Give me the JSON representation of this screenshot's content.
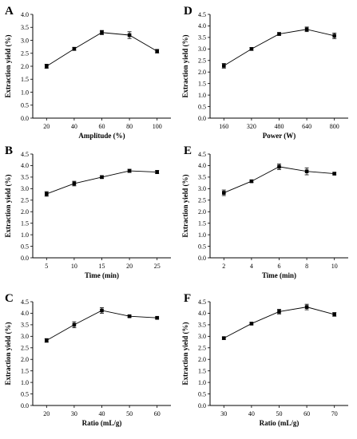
{
  "chart_data": [
    {
      "panel": "A",
      "type": "line",
      "x": [
        20,
        40,
        60,
        80,
        100
      ],
      "y": [
        2.0,
        2.67,
        3.3,
        3.2,
        2.58
      ],
      "err": [
        0.08,
        0.06,
        0.08,
        0.13,
        0.07
      ],
      "xlabel": "Amplitude (%)",
      "ylabel": "Extraction yield (%)",
      "xlim": [
        10,
        110
      ],
      "ylim": [
        0,
        4.0
      ],
      "xticks": [
        20,
        40,
        60,
        80,
        100
      ],
      "yticks": [
        0.0,
        0.5,
        1.0,
        1.5,
        2.0,
        2.5,
        3.0,
        3.5,
        4.0
      ],
      "grid": false
    },
    {
      "panel": "D",
      "type": "line",
      "x": [
        160,
        320,
        480,
        640,
        800
      ],
      "y": [
        2.27,
        3.0,
        3.65,
        3.85,
        3.57
      ],
      "err": [
        0.1,
        0.06,
        0.06,
        0.1,
        0.12
      ],
      "xlabel": "Power (W)",
      "ylabel": "Extraction yield (%)",
      "xlim": [
        80,
        880
      ],
      "ylim": [
        0,
        4.5
      ],
      "xticks": [
        160,
        320,
        480,
        640,
        800
      ],
      "yticks": [
        0.0,
        0.5,
        1.0,
        1.5,
        2.0,
        2.5,
        3.0,
        3.5,
        4.0,
        4.5
      ],
      "grid": false
    },
    {
      "panel": "B",
      "type": "line",
      "x": [
        5,
        10,
        15,
        20,
        25
      ],
      "y": [
        2.77,
        3.22,
        3.5,
        3.77,
        3.72
      ],
      "err": [
        0.1,
        0.1,
        0.06,
        0.07,
        0.07
      ],
      "xlabel": "Time (min)",
      "ylabel": "Extraction yield (%)",
      "xlim": [
        2.5,
        27.5
      ],
      "ylim": [
        0,
        4.5
      ],
      "xticks": [
        5,
        10,
        15,
        20,
        25
      ],
      "yticks": [
        0.0,
        0.5,
        1.0,
        1.5,
        2.0,
        2.5,
        3.0,
        3.5,
        4.0,
        4.5
      ],
      "grid": false
    },
    {
      "panel": "E",
      "type": "line",
      "x": [
        2,
        4,
        6,
        8,
        10
      ],
      "y": [
        2.82,
        3.32,
        3.95,
        3.75,
        3.65
      ],
      "err": [
        0.12,
        0.05,
        0.12,
        0.15,
        0.05
      ],
      "xlabel": "Time (min)",
      "ylabel": "Extraction yield (%)",
      "xlim": [
        1,
        11
      ],
      "ylim": [
        0,
        4.5
      ],
      "xticks": [
        2,
        4,
        6,
        8,
        10
      ],
      "yticks": [
        0.0,
        0.5,
        1.0,
        1.5,
        2.0,
        2.5,
        3.0,
        3.5,
        4.0,
        4.5
      ],
      "grid": false
    },
    {
      "panel": "C",
      "type": "line",
      "x": [
        20,
        30,
        40,
        50,
        60
      ],
      "y": [
        2.82,
        3.5,
        4.12,
        3.87,
        3.8
      ],
      "err": [
        0.08,
        0.13,
        0.12,
        0.04,
        0.04
      ],
      "xlabel": "Ratio (mL/g)",
      "ylabel": "Extraction yield (%)",
      "xlim": [
        15,
        65
      ],
      "ylim": [
        0,
        4.5
      ],
      "xticks": [
        20,
        30,
        40,
        50,
        60
      ],
      "yticks": [
        0.0,
        0.5,
        1.0,
        1.5,
        2.0,
        2.5,
        3.0,
        3.5,
        4.0,
        4.5
      ],
      "grid": false
    },
    {
      "panel": "F",
      "type": "line",
      "x": [
        30,
        40,
        50,
        60,
        70
      ],
      "y": [
        2.92,
        3.55,
        4.07,
        4.27,
        3.95
      ],
      "err": [
        0.05,
        0.05,
        0.1,
        0.12,
        0.08
      ],
      "xlabel": "Ratio (mL/g)",
      "ylabel": "Extraction yield (%)",
      "xlim": [
        25,
        75
      ],
      "ylim": [
        0,
        4.5
      ],
      "xticks": [
        30,
        40,
        50,
        60,
        70
      ],
      "yticks": [
        0.0,
        0.5,
        1.0,
        1.5,
        2.0,
        2.5,
        3.0,
        3.5,
        4.0,
        4.5
      ],
      "grid": false
    }
  ]
}
